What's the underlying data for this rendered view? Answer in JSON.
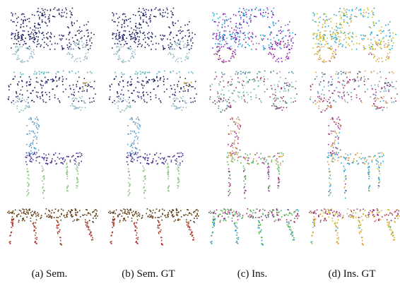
{
  "figure": {
    "captions": [
      "(a) Sem.",
      "(b) Sem. GT",
      "(c) Ins.",
      "(d) Ins. GT"
    ],
    "rows": [
      {
        "object": "pickup-truck",
        "columns": [
          {
            "palette": [
              "#1b2060",
              "#8fb9c2"
            ]
          },
          {
            "palette": [
              "#1b2060",
              "#8fb9c2"
            ]
          },
          {
            "palette": [
              "#19a6d6",
              "#6a1fb0",
              "#b6319a",
              "#e09a4a",
              "#2b5fa0",
              "#7c5ad0"
            ]
          },
          {
            "palette": [
              "#19a6d6",
              "#c8b820",
              "#e09a4a",
              "#b6319a",
              "#30b060",
              "#2b5fa0"
            ]
          }
        ]
      },
      {
        "object": "suv",
        "columns": [
          {
            "palette": [
              "#1b2060",
              "#8fb9c2",
              "#4ab0c0",
              "#c89020"
            ]
          },
          {
            "palette": [
              "#1b2060",
              "#8fb9c2",
              "#4ab0c0",
              "#c89020"
            ]
          },
          {
            "palette": [
              "#7ac0a0",
              "#9a2a7a",
              "#4a9a70",
              "#3a7ab0",
              "#b07ad0"
            ]
          },
          {
            "palette": [
              "#5a9ac0",
              "#9a2a7a",
              "#e09a4a",
              "#4a7ab0",
              "#303030"
            ]
          }
        ]
      },
      {
        "object": "chair",
        "columns": [
          {
            "palette": [
              "#5a9ac8",
              "#4a2a90",
              "#8ac080"
            ]
          },
          {
            "palette": [
              "#5a9ac8",
              "#4a2a90",
              "#8ac080"
            ]
          },
          {
            "palette": [
              "#b02a8a",
              "#d8924a",
              "#50b050",
              "#a030a0"
            ]
          },
          {
            "palette": [
              "#a02a8a",
              "#d8924a",
              "#20a0d0",
              "#c8c040"
            ]
          }
        ]
      },
      {
        "object": "table",
        "columns": [
          {
            "palette": [
              "#5a3208",
              "#a83020"
            ]
          },
          {
            "palette": [
              "#5a3208",
              "#a83020"
            ]
          },
          {
            "palette": [
              "#a02a70",
              "#40b040",
              "#1a9ad0",
              "#d0c060"
            ]
          },
          {
            "palette": [
              "#a02a70",
              "#c8b820",
              "#e09a4a",
              "#20a0d0",
              "#30b060"
            ]
          }
        ]
      }
    ]
  }
}
